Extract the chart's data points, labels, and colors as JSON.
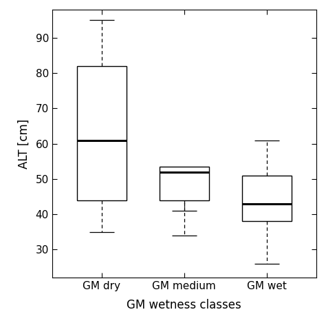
{
  "categories": [
    "GM dry",
    "GM medium",
    "GM wet"
  ],
  "boxes": [
    {
      "q1": 44,
      "median": 61,
      "q3": 82,
      "whisker_low": 35,
      "whisker_high": 95
    },
    {
      "q1": 44,
      "median": 52,
      "q3": 53.5,
      "whisker_low": 34,
      "whisker_high": 41
    },
    {
      "q1": 38,
      "median": 43,
      "q3": 51,
      "whisker_low": 26,
      "whisker_high": 61
    }
  ],
  "ylabel": "ALT [cm]",
  "xlabel": "GM wetness classes",
  "ylim": [
    22,
    98
  ],
  "yticks": [
    30,
    40,
    50,
    60,
    70,
    80,
    90
  ],
  "box_width": 0.6,
  "box_color": "white",
  "box_edge_color": "black",
  "median_color": "black",
  "whisker_color": "black",
  "cap_color": "black",
  "background_color": "white",
  "figsize": [
    4.74,
    4.69
  ],
  "dpi": 100
}
